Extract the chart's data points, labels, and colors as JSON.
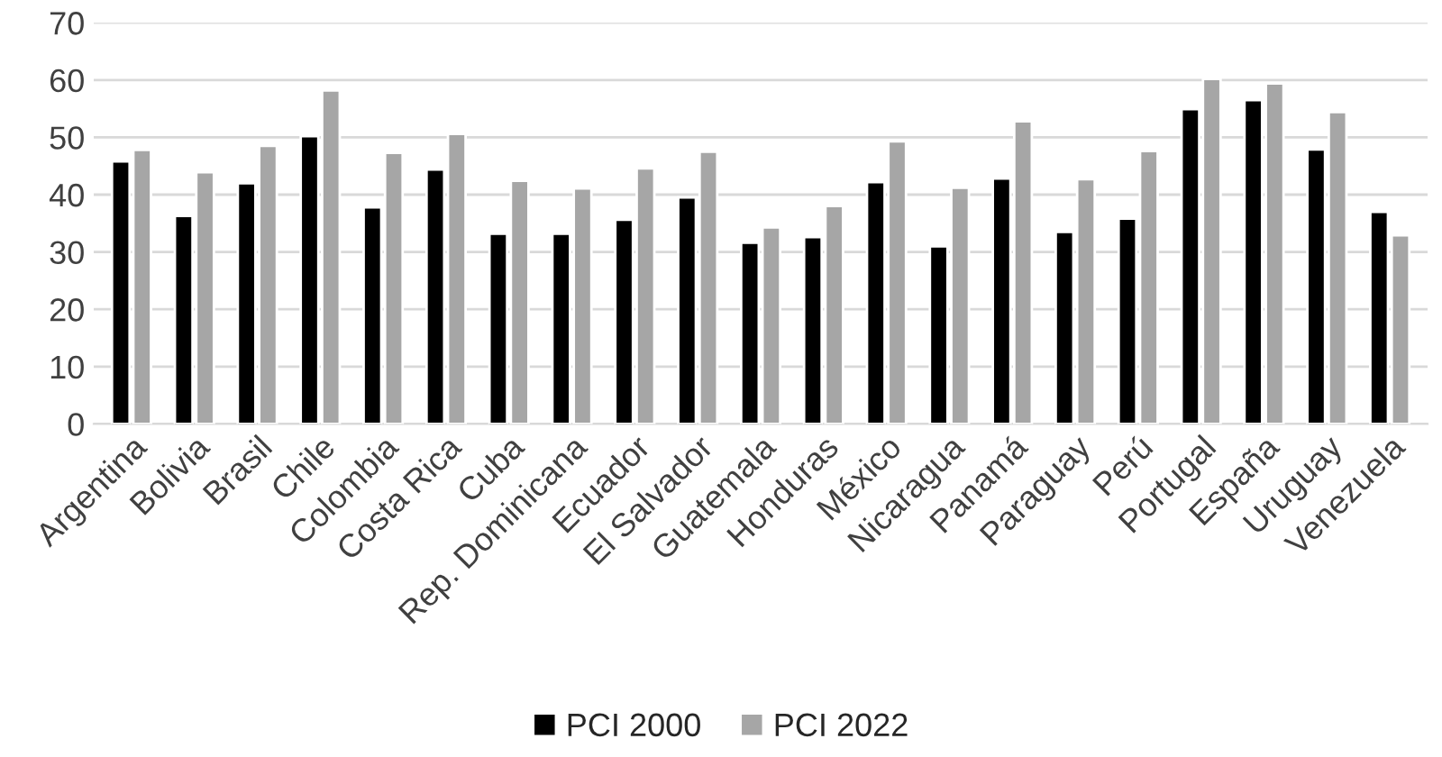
{
  "chart_data": {
    "type": "bar",
    "categories": [
      "Argentina",
      "Bolivia",
      "Brasil",
      "Chile",
      "Colombia",
      "Costa Rica",
      "Cuba",
      "Rep. Dominicana",
      "Ecuador",
      "El Salvador",
      "Guatemala",
      "Honduras",
      "México",
      "Nicaragua",
      "Panamá",
      "Paraguay",
      "Perú",
      "Portugal",
      "España",
      "Uruguay",
      "Venezuela"
    ],
    "series": [
      {
        "name": "PCI 2000",
        "color": "#000000",
        "values": [
          45.8,
          36.3,
          42.0,
          50.2,
          37.8,
          44.4,
          33.2,
          33.2,
          35.6,
          39.5,
          31.6,
          32.6,
          42.2,
          31.0,
          42.8,
          33.5,
          35.8,
          54.9,
          56.5,
          47.9,
          37.0
        ]
      },
      {
        "name": "PCI 2022",
        "color": "#a6a6a6",
        "values": [
          47.8,
          43.9,
          48.5,
          58.2,
          47.3,
          50.6,
          42.4,
          41.1,
          44.6,
          47.5,
          34.3,
          38.0,
          49.3,
          41.2,
          52.8,
          42.7,
          47.6,
          60.2,
          59.4,
          54.4,
          32.9
        ]
      }
    ],
    "ylim": [
      0,
      70
    ],
    "yticks": [
      0,
      10,
      20,
      30,
      40,
      50,
      60,
      70
    ],
    "grid": "y",
    "legend": "bottom"
  }
}
